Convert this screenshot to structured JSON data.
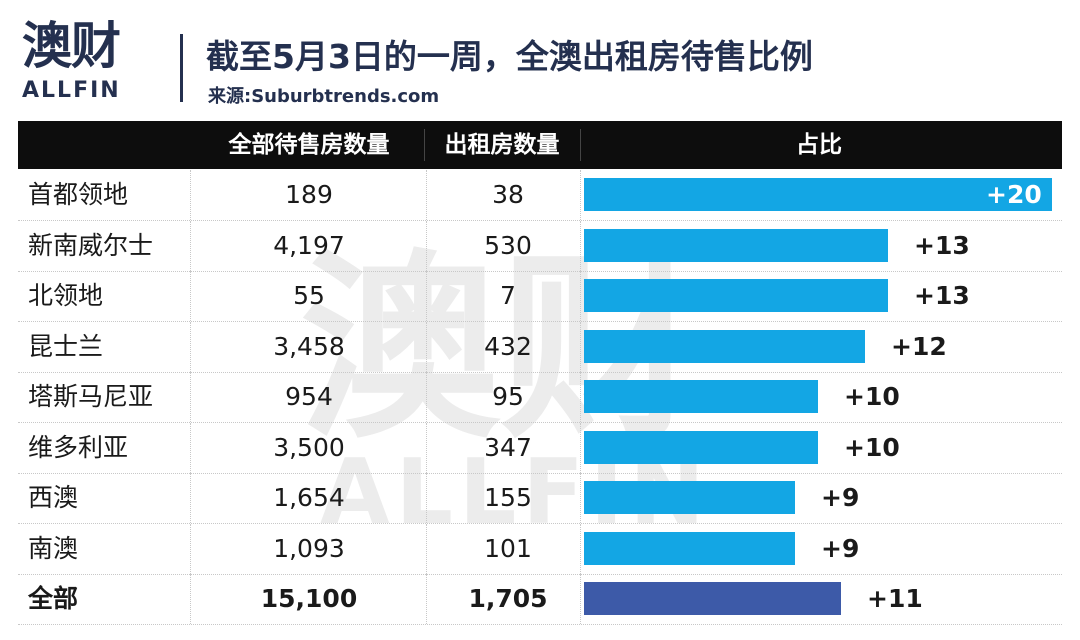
{
  "logo": {
    "cn": "澳财",
    "en": "ALLFIN"
  },
  "title": "截至5月3日的一周，全澳出租房待售比例",
  "source": "来源:Suburbtrends.com",
  "colors": {
    "bar": "#13a6e4",
    "total_bar": "#3d5aa8",
    "header_bg": "#0d0d0d"
  },
  "chart_data": {
    "type": "table",
    "columns": [
      "",
      "全部待售房数量",
      "出租房数量",
      "占比"
    ],
    "rows": [
      {
        "region": "首都领地",
        "total": "189",
        "rental": "38",
        "share": 20,
        "label": "+20"
      },
      {
        "region": "新南威尔士",
        "total": "4,197",
        "rental": "530",
        "share": 13,
        "label": "+13"
      },
      {
        "region": "北领地",
        "total": "55",
        "rental": "7",
        "share": 13,
        "label": "+13"
      },
      {
        "region": "昆士兰",
        "total": "3,458",
        "rental": "432",
        "share": 12,
        "label": "+12"
      },
      {
        "region": "塔斯马尼亚",
        "total": "954",
        "rental": "95",
        "share": 10,
        "label": "+10"
      },
      {
        "region": "维多利亚",
        "total": "3,500",
        "rental": "347",
        "share": 10,
        "label": "+10"
      },
      {
        "region": "西澳",
        "total": "1,654",
        "rental": "155",
        "share": 9,
        "label": "+9"
      },
      {
        "region": "南澳",
        "total": "1,093",
        "rental": "101",
        "share": 9,
        "label": "+9"
      },
      {
        "region": "全部",
        "total": "15,100",
        "rental": "1,705",
        "share": 11,
        "label": "+11",
        "is_total": true
      }
    ],
    "xlim": [
      0,
      20
    ]
  }
}
